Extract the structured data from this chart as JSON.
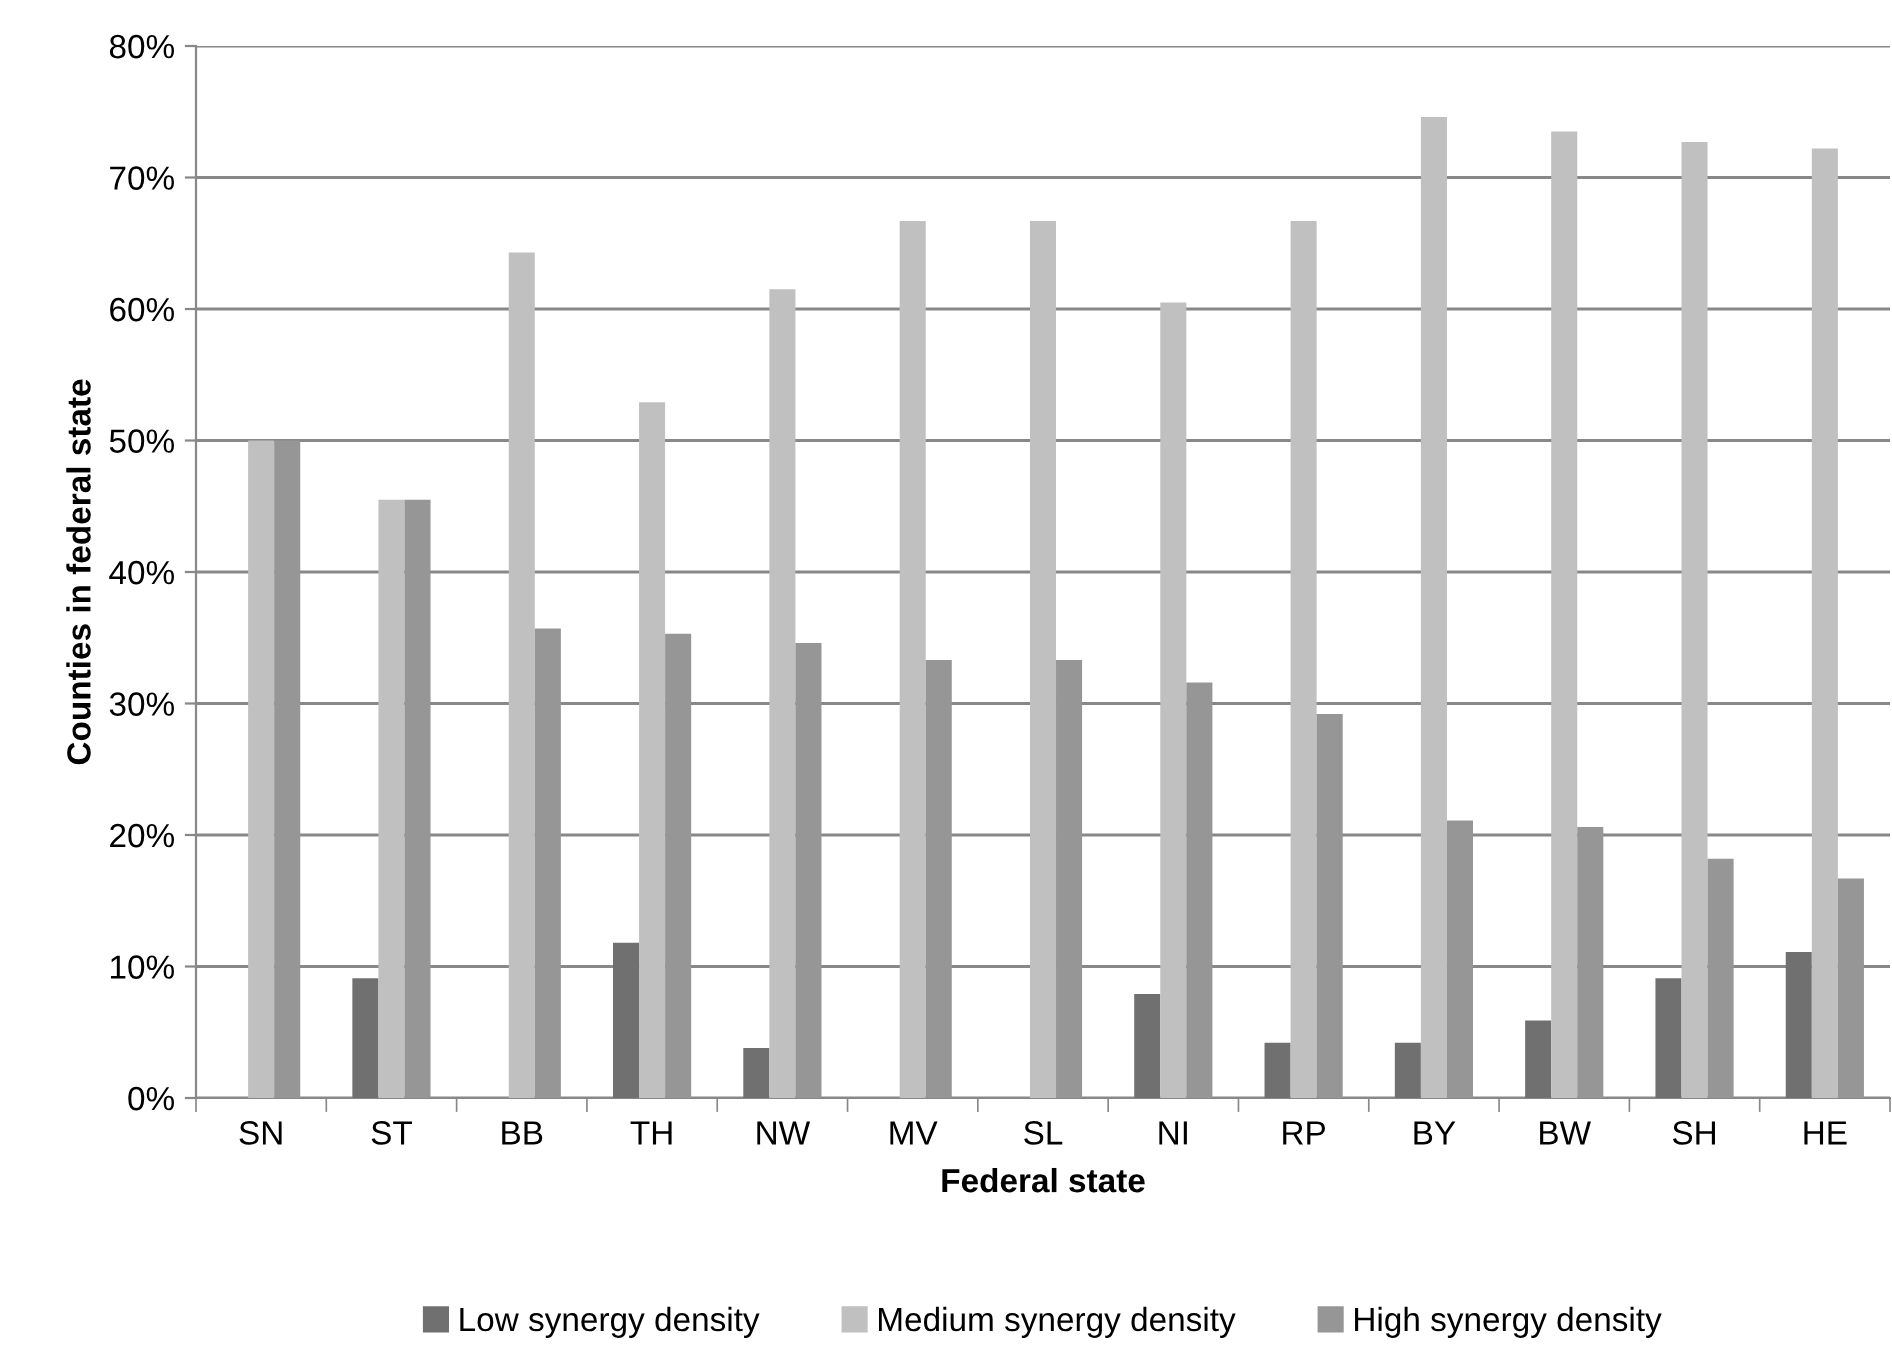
{
  "chart_data": {
    "type": "bar",
    "xlabel": "Federal state",
    "ylabel": "Counties in federal state",
    "categories": [
      "SN",
      "ST",
      "BB",
      "TH",
      "NW",
      "MV",
      "SL",
      "NI",
      "RP",
      "BY",
      "BW",
      "SH",
      "HE"
    ],
    "series": [
      {
        "name": "Low synergy density",
        "color": "#707070",
        "values": [
          0,
          9.1,
          0,
          11.8,
          3.8,
          0,
          0,
          7.9,
          4.2,
          4.2,
          5.9,
          9.1,
          11.1
        ]
      },
      {
        "name": "Medium synergy density",
        "color": "#c0c0c0",
        "values": [
          50,
          45.5,
          64.3,
          52.9,
          61.5,
          66.7,
          66.7,
          60.5,
          66.7,
          74.6,
          73.5,
          72.7,
          72.2
        ]
      },
      {
        "name": "High synergy density",
        "color": "#969696",
        "values": [
          50,
          45.5,
          35.7,
          35.3,
          34.6,
          33.3,
          33.3,
          31.6,
          29.2,
          21.1,
          20.6,
          18.2,
          16.7
        ]
      }
    ],
    "ylim": [
      0,
      80
    ],
    "yticks": [
      {
        "value": 0,
        "label": "0%"
      },
      {
        "value": 10,
        "label": "10%"
      },
      {
        "value": 20,
        "label": "20%"
      },
      {
        "value": 30,
        "label": "30%"
      },
      {
        "value": 40,
        "label": "40%"
      },
      {
        "value": 50,
        "label": "50%"
      },
      {
        "value": 60,
        "label": "60%"
      },
      {
        "value": 70,
        "label": "70%"
      },
      {
        "value": 80,
        "label": "80%"
      }
    ],
    "grid": "y",
    "legend": "bottom"
  }
}
